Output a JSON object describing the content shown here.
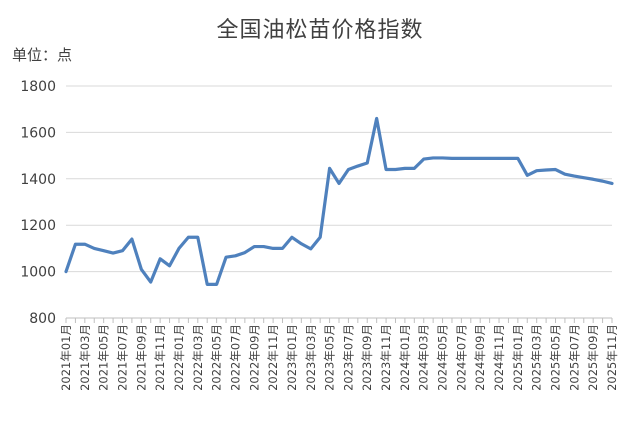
{
  "chart_data": {
    "type": "line",
    "title": "全国油松苗价格指数",
    "unit_label": "单位：点",
    "xlabel": "",
    "ylabel": "",
    "ylim": [
      800,
      1800
    ],
    "yticks": [
      800,
      1000,
      1200,
      1400,
      1600,
      1800
    ],
    "grid": true,
    "line_color": "#4f81bd",
    "categories": [
      "2021年01月",
      "2021年02月",
      "2021年03月",
      "2021年04月",
      "2021年05月",
      "2021年06月",
      "2021年07月",
      "2021年08月",
      "2021年09月",
      "2021年10月",
      "2021年11月",
      "2021年12月",
      "2022年01月",
      "2022年02月",
      "2022年03月",
      "2022年04月",
      "2022年05月",
      "2022年06月",
      "2022年07月",
      "2022年08月",
      "2022年09月",
      "2022年10月",
      "2022年11月",
      "2022年12月",
      "2023年01月",
      "2023年02月",
      "2023年03月",
      "2023年04月",
      "2023年05月",
      "2023年06月",
      "2023年07月",
      "2023年08月",
      "2023年09月",
      "2023年10月",
      "2023年11月",
      "2023年12月",
      "2024年01月",
      "2024年02月",
      "2024年03月",
      "2024年04月",
      "2024年05月",
      "2024年06月",
      "2024年07月",
      "2024年08月",
      "2024年09月",
      "2024年10月",
      "2024年11月",
      "2024年12月",
      "2025年01月",
      "2025年02月",
      "2025年03月",
      "2025年04月",
      "2025年05月",
      "2025年06月",
      "2025年07月",
      "2025年08月",
      "2025年09月",
      "2025年10月",
      "2025年11月"
    ],
    "series": [
      {
        "values": [
          1000,
          1118,
          1118,
          1100,
          1090,
          1080,
          1090,
          1140,
          1010,
          955,
          1055,
          1025,
          1100,
          1148,
          1148,
          945,
          945,
          1062,
          1068,
          1082,
          1108,
          1108,
          1100,
          1100,
          1148,
          1120,
          1098,
          1148,
          1445,
          1380,
          1440,
          1455,
          1468,
          1660,
          1440,
          1440,
          1445,
          1445,
          1485,
          1490,
          1490,
          1488,
          1488,
          1488,
          1488,
          1488,
          1488,
          1488,
          1488,
          1415,
          1435,
          1438,
          1440,
          1420,
          1412,
          1405,
          1398,
          1390,
          1380
        ]
      }
    ],
    "label_every": 2
  }
}
